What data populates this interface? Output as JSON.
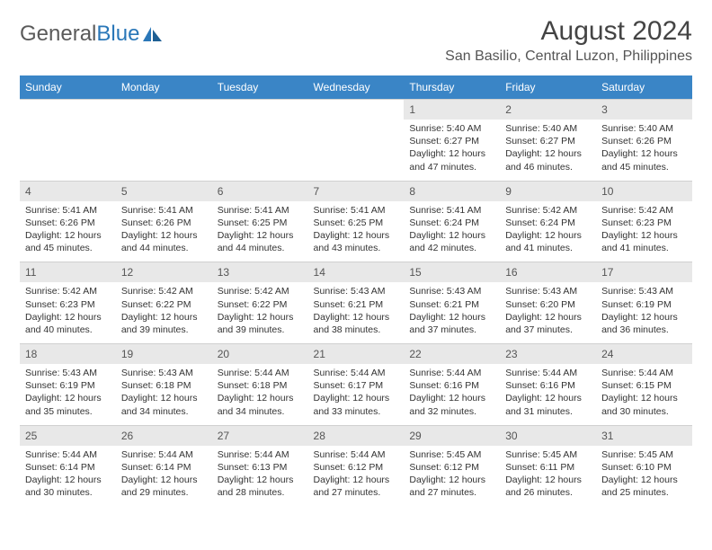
{
  "brand": {
    "name_gray": "General",
    "name_blue": "Blue"
  },
  "title": "August 2024",
  "location": "San Basilio, Central Luzon, Philippines",
  "colors": {
    "header_bg": "#3a85c6",
    "daynum_bg": "#e8e8e8",
    "text": "#333333",
    "logo_gray": "#5a5a5a",
    "logo_blue": "#2a77b8"
  },
  "days_of_week": [
    "Sunday",
    "Monday",
    "Tuesday",
    "Wednesday",
    "Thursday",
    "Friday",
    "Saturday"
  ],
  "weeks": [
    [
      null,
      null,
      null,
      null,
      {
        "n": "1",
        "sr": "5:40 AM",
        "ss": "6:27 PM",
        "dl": "12 hours and 47 minutes."
      },
      {
        "n": "2",
        "sr": "5:40 AM",
        "ss": "6:27 PM",
        "dl": "12 hours and 46 minutes."
      },
      {
        "n": "3",
        "sr": "5:40 AM",
        "ss": "6:26 PM",
        "dl": "12 hours and 45 minutes."
      }
    ],
    [
      {
        "n": "4",
        "sr": "5:41 AM",
        "ss": "6:26 PM",
        "dl": "12 hours and 45 minutes."
      },
      {
        "n": "5",
        "sr": "5:41 AM",
        "ss": "6:26 PM",
        "dl": "12 hours and 44 minutes."
      },
      {
        "n": "6",
        "sr": "5:41 AM",
        "ss": "6:25 PM",
        "dl": "12 hours and 44 minutes."
      },
      {
        "n": "7",
        "sr": "5:41 AM",
        "ss": "6:25 PM",
        "dl": "12 hours and 43 minutes."
      },
      {
        "n": "8",
        "sr": "5:41 AM",
        "ss": "6:24 PM",
        "dl": "12 hours and 42 minutes."
      },
      {
        "n": "9",
        "sr": "5:42 AM",
        "ss": "6:24 PM",
        "dl": "12 hours and 41 minutes."
      },
      {
        "n": "10",
        "sr": "5:42 AM",
        "ss": "6:23 PM",
        "dl": "12 hours and 41 minutes."
      }
    ],
    [
      {
        "n": "11",
        "sr": "5:42 AM",
        "ss": "6:23 PM",
        "dl": "12 hours and 40 minutes."
      },
      {
        "n": "12",
        "sr": "5:42 AM",
        "ss": "6:22 PM",
        "dl": "12 hours and 39 minutes."
      },
      {
        "n": "13",
        "sr": "5:42 AM",
        "ss": "6:22 PM",
        "dl": "12 hours and 39 minutes."
      },
      {
        "n": "14",
        "sr": "5:43 AM",
        "ss": "6:21 PM",
        "dl": "12 hours and 38 minutes."
      },
      {
        "n": "15",
        "sr": "5:43 AM",
        "ss": "6:21 PM",
        "dl": "12 hours and 37 minutes."
      },
      {
        "n": "16",
        "sr": "5:43 AM",
        "ss": "6:20 PM",
        "dl": "12 hours and 37 minutes."
      },
      {
        "n": "17",
        "sr": "5:43 AM",
        "ss": "6:19 PM",
        "dl": "12 hours and 36 minutes."
      }
    ],
    [
      {
        "n": "18",
        "sr": "5:43 AM",
        "ss": "6:19 PM",
        "dl": "12 hours and 35 minutes."
      },
      {
        "n": "19",
        "sr": "5:43 AM",
        "ss": "6:18 PM",
        "dl": "12 hours and 34 minutes."
      },
      {
        "n": "20",
        "sr": "5:44 AM",
        "ss": "6:18 PM",
        "dl": "12 hours and 34 minutes."
      },
      {
        "n": "21",
        "sr": "5:44 AM",
        "ss": "6:17 PM",
        "dl": "12 hours and 33 minutes."
      },
      {
        "n": "22",
        "sr": "5:44 AM",
        "ss": "6:16 PM",
        "dl": "12 hours and 32 minutes."
      },
      {
        "n": "23",
        "sr": "5:44 AM",
        "ss": "6:16 PM",
        "dl": "12 hours and 31 minutes."
      },
      {
        "n": "24",
        "sr": "5:44 AM",
        "ss": "6:15 PM",
        "dl": "12 hours and 30 minutes."
      }
    ],
    [
      {
        "n": "25",
        "sr": "5:44 AM",
        "ss": "6:14 PM",
        "dl": "12 hours and 30 minutes."
      },
      {
        "n": "26",
        "sr": "5:44 AM",
        "ss": "6:14 PM",
        "dl": "12 hours and 29 minutes."
      },
      {
        "n": "27",
        "sr": "5:44 AM",
        "ss": "6:13 PM",
        "dl": "12 hours and 28 minutes."
      },
      {
        "n": "28",
        "sr": "5:44 AM",
        "ss": "6:12 PM",
        "dl": "12 hours and 27 minutes."
      },
      {
        "n": "29",
        "sr": "5:45 AM",
        "ss": "6:12 PM",
        "dl": "12 hours and 27 minutes."
      },
      {
        "n": "30",
        "sr": "5:45 AM",
        "ss": "6:11 PM",
        "dl": "12 hours and 26 minutes."
      },
      {
        "n": "31",
        "sr": "5:45 AM",
        "ss": "6:10 PM",
        "dl": "12 hours and 25 minutes."
      }
    ]
  ],
  "labels": {
    "sunrise": "Sunrise:",
    "sunset": "Sunset:",
    "daylight": "Daylight:"
  }
}
